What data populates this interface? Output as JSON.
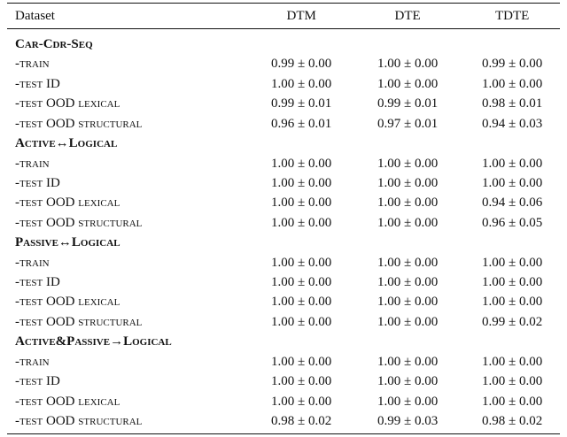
{
  "table": {
    "header": [
      "Dataset",
      "DTM",
      "DTE",
      "TDTE"
    ],
    "sections": [
      {
        "title": "Car-Cdr-Seq",
        "rows": [
          [
            "-train",
            "0.99 ± 0.00",
            "1.00 ± 0.00",
            "0.99 ± 0.00"
          ],
          [
            "-test ID",
            "1.00 ± 0.00",
            "1.00 ± 0.00",
            "1.00 ± 0.00"
          ],
          [
            "-test OOD lexical",
            "0.99 ± 0.01",
            "0.99 ± 0.01",
            "0.98 ± 0.01"
          ],
          [
            "-test OOD structural",
            "0.96 ± 0.01",
            "0.97 ± 0.01",
            "0.94 ± 0.03"
          ]
        ]
      },
      {
        "title": "Active↔Logical",
        "rows": [
          [
            "-train",
            "1.00 ± 0.00",
            "1.00 ± 0.00",
            "1.00 ± 0.00"
          ],
          [
            "-test ID",
            "1.00 ± 0.00",
            "1.00 ± 0.00",
            "1.00 ± 0.00"
          ],
          [
            "-test OOD lexical",
            "1.00 ± 0.00",
            "1.00 ± 0.00",
            "0.94 ± 0.06"
          ],
          [
            "-test OOD structural",
            "1.00 ± 0.00",
            "1.00 ± 0.00",
            "0.96 ± 0.05"
          ]
        ]
      },
      {
        "title": "Passive↔Logical",
        "rows": [
          [
            "-train",
            "1.00 ± 0.00",
            "1.00 ± 0.00",
            "1.00 ± 0.00"
          ],
          [
            "-test ID",
            "1.00 ± 0.00",
            "1.00 ± 0.00",
            "1.00 ± 0.00"
          ],
          [
            "-test OOD lexical",
            "1.00 ± 0.00",
            "1.00 ± 0.00",
            "1.00 ± 0.00"
          ],
          [
            "-test OOD structural",
            "1.00 ± 0.00",
            "1.00 ± 0.00",
            "0.99 ± 0.02"
          ]
        ]
      },
      {
        "title": "Active&Passive→Logical",
        "rows": [
          [
            "-train",
            "1.00 ± 0.00",
            "1.00 ± 0.00",
            "1.00 ± 0.00"
          ],
          [
            "-test ID",
            "1.00 ± 0.00",
            "1.00 ± 0.00",
            "1.00 ± 0.00"
          ],
          [
            "-test OOD lexical",
            "1.00 ± 0.00",
            "1.00 ± 0.00",
            "1.00 ± 0.00"
          ],
          [
            "-test OOD structural",
            "0.98 ± 0.02",
            "0.99 ± 0.03",
            "0.98 ± 0.02"
          ]
        ]
      }
    ]
  }
}
